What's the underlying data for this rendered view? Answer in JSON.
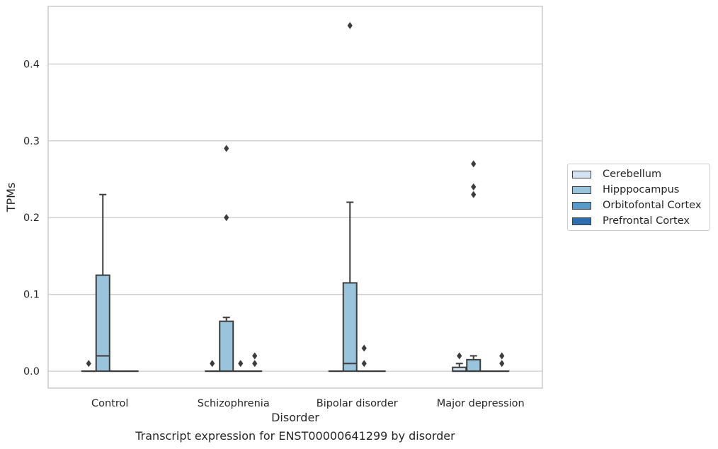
{
  "caption": "Transcript expression for ENST00000641299 by disorder",
  "colors": {
    "Cerebellum": "#d3e3f1",
    "Hipppocampus": "#9ac3dc",
    "Orbitofontal Cortex": "#5a9ac9",
    "Prefrontal Cortex": "#2c6eae",
    "box_edge": "#3c3c3c",
    "grid": "#cccccc"
  },
  "chart_data": {
    "type": "box",
    "xlabel": "Disorder",
    "ylabel": "TPMs",
    "categories": [
      "Control",
      "Schizophrenia",
      "Bipolar disorder",
      "Major depression"
    ],
    "ylim": [
      -0.022,
      0.475
    ],
    "yticks": [
      0.0,
      0.1,
      0.2,
      0.3,
      0.4
    ],
    "ytick_labels": [
      "0.0",
      "0.1",
      "0.2",
      "0.3",
      "0.4"
    ],
    "grid": "horizontal",
    "legend_position": "right",
    "series": [
      {
        "name": "Cerebellum",
        "boxes": [
          {
            "q1": 0,
            "median": 0,
            "q3": 0,
            "whisker_low": 0,
            "whisker_high": 0,
            "outliers": [
              0.01
            ]
          },
          {
            "q1": 0,
            "median": 0,
            "q3": 0,
            "whisker_low": 0,
            "whisker_high": 0,
            "outliers": [
              0.01
            ]
          },
          {
            "q1": 0,
            "median": 0,
            "q3": 0,
            "whisker_low": 0,
            "whisker_high": 0,
            "outliers": []
          },
          {
            "q1": 0,
            "median": 0,
            "q3": 0.005,
            "whisker_low": 0,
            "whisker_high": 0.01,
            "outliers": [
              0.02
            ]
          }
        ]
      },
      {
        "name": "Hipppocampus",
        "boxes": [
          {
            "q1": 0,
            "median": 0.02,
            "q3": 0.125,
            "whisker_low": 0,
            "whisker_high": 0.23,
            "outliers": []
          },
          {
            "q1": 0,
            "median": 0,
            "q3": 0.065,
            "whisker_low": 0,
            "whisker_high": 0.07,
            "outliers": [
              0.2,
              0.29
            ]
          },
          {
            "q1": 0,
            "median": 0.01,
            "q3": 0.115,
            "whisker_low": 0,
            "whisker_high": 0.22,
            "outliers": [
              0.45
            ]
          },
          {
            "q1": 0,
            "median": 0,
            "q3": 0.015,
            "whisker_low": 0,
            "whisker_high": 0.02,
            "outliers": [
              0.23,
              0.24,
              0.27
            ]
          }
        ]
      },
      {
        "name": "Orbitofontal Cortex",
        "boxes": [
          {
            "q1": 0,
            "median": 0,
            "q3": 0,
            "whisker_low": 0,
            "whisker_high": 0,
            "outliers": []
          },
          {
            "q1": 0,
            "median": 0,
            "q3": 0,
            "whisker_low": 0,
            "whisker_high": 0,
            "outliers": [
              0.01
            ]
          },
          {
            "q1": 0,
            "median": 0,
            "q3": 0,
            "whisker_low": 0,
            "whisker_high": 0,
            "outliers": [
              0.01,
              0.03
            ]
          },
          {
            "q1": 0,
            "median": 0,
            "q3": 0,
            "whisker_low": 0,
            "whisker_high": 0,
            "outliers": []
          }
        ]
      },
      {
        "name": "Prefrontal Cortex",
        "boxes": [
          {
            "q1": 0,
            "median": 0,
            "q3": 0,
            "whisker_low": 0,
            "whisker_high": 0,
            "outliers": []
          },
          {
            "q1": 0,
            "median": 0,
            "q3": 0,
            "whisker_low": 0,
            "whisker_high": 0,
            "outliers": [
              0.01,
              0.02
            ]
          },
          {
            "q1": 0,
            "median": 0,
            "q3": 0,
            "whisker_low": 0,
            "whisker_high": 0,
            "outliers": []
          },
          {
            "q1": 0,
            "median": 0,
            "q3": 0,
            "whisker_low": 0,
            "whisker_high": 0,
            "outliers": [
              0.01,
              0.02
            ]
          }
        ]
      }
    ]
  }
}
